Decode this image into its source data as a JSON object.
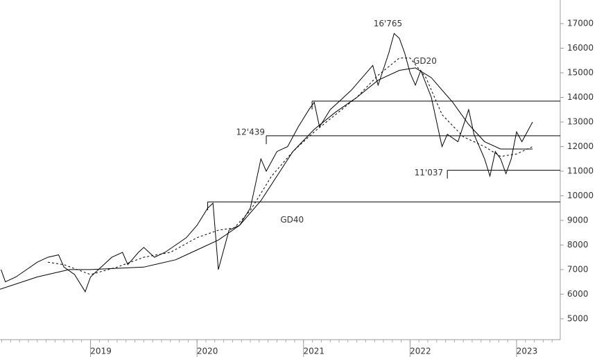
{
  "chart_data": {
    "type": "line",
    "xlim": [
      2018.15,
      2023.41
    ],
    "xticks": [
      2019,
      2020,
      2021,
      2022,
      2023
    ],
    "ylim": [
      4150,
      17960
    ],
    "yticks": [
      5000,
      6000,
      7000,
      8000,
      9000,
      10000,
      11000,
      12000,
      13000,
      14000,
      15000,
      16000,
      17000
    ],
    "series": [
      {
        "color": "#000000",
        "style": "solid",
        "x": [
          2018.16,
          2018.2,
          2018.3,
          2018.4,
          2018.5,
          2018.6,
          2018.7,
          2018.75,
          2018.85,
          2018.95,
          2019.0,
          2019.1,
          2019.2,
          2019.3,
          2019.35,
          2019.45,
          2019.5,
          2019.6,
          2019.7,
          2019.8,
          2019.9,
          2020.0,
          2020.1,
          2020.15,
          2020.2,
          2020.25,
          2020.3,
          2020.4,
          2020.5,
          2020.55,
          2020.6,
          2020.65,
          2020.75,
          2020.85,
          2020.95,
          2021.05,
          2021.1,
          2021.15,
          2021.25,
          2021.35,
          2021.45,
          2021.55,
          2021.65,
          2021.7,
          2021.8,
          2021.85,
          2021.9,
          2021.95,
          2022.0,
          2022.05,
          2022.1,
          2022.2,
          2022.3,
          2022.35,
          2022.45,
          2022.55,
          2022.6,
          2022.7,
          2022.75,
          2022.8,
          2022.85,
          2022.9,
          2022.95,
          2023.0,
          2023.05,
          2023.1,
          2023.15
        ],
        "values": [
          7000,
          6500,
          6700,
          7000,
          7300,
          7500,
          7600,
          7100,
          6800,
          6100,
          6700,
          7100,
          7500,
          7700,
          7200,
          7700,
          7900,
          7500,
          7700,
          8000,
          8300,
          8800,
          9500,
          9700,
          7000,
          7800,
          8600,
          8800,
          9500,
          10500,
          11500,
          11000,
          11800,
          12000,
          12800,
          13500,
          13800,
          12800,
          13500,
          13900,
          14300,
          14800,
          15300,
          14500,
          15800,
          16600,
          16400,
          15800,
          15000,
          14500,
          15100,
          14000,
          12000,
          12500,
          12200,
          13500,
          12500,
          11500,
          10800,
          11800,
          11500,
          10900,
          11500,
          12600,
          12200,
          12600,
          13000
        ]
      },
      {
        "name": "GD20",
        "color": "#000000",
        "style": "dashed",
        "x": [
          2018.6,
          2018.75,
          2019.0,
          2019.25,
          2019.5,
          2019.75,
          2020.0,
          2020.2,
          2020.35,
          2020.5,
          2020.7,
          2020.9,
          2021.1,
          2021.3,
          2021.5,
          2021.7,
          2021.9,
          2022.0,
          2022.15,
          2022.3,
          2022.5,
          2022.7,
          2022.85,
          2023.0,
          2023.15
        ],
        "values": [
          7300,
          7200,
          6800,
          7100,
          7500,
          7700,
          8300,
          8600,
          8700,
          9400,
          10800,
          11800,
          12600,
          13300,
          14000,
          14900,
          15600,
          15600,
          14800,
          13300,
          12400,
          12000,
          11600,
          11700,
          12000
        ]
      },
      {
        "name": "GD40",
        "color": "#000000",
        "style": "solid",
        "x": [
          2018.15,
          2018.5,
          2018.8,
          2019.0,
          2019.5,
          2019.8,
          2020.0,
          2020.2,
          2020.4,
          2020.6,
          2020.75,
          2020.9,
          2021.1,
          2021.3,
          2021.5,
          2021.7,
          2021.9,
          2022.05,
          2022.2,
          2022.4,
          2022.55,
          2022.7,
          2022.85,
          2023.0,
          2023.15
        ],
        "values": [
          6200,
          6700,
          7000,
          7000,
          7100,
          7400,
          7800,
          8200,
          8800,
          9800,
          10800,
          11800,
          12700,
          13400,
          14000,
          14700,
          15100,
          15200,
          14800,
          13800,
          12900,
          12200,
          11900,
          11900,
          11900
        ]
      }
    ],
    "levels": [
      {
        "value": 13850,
        "from": 2021.08
      },
      {
        "value": 12439,
        "from": 2020.65,
        "label": "12'439"
      },
      {
        "value": 11037,
        "from": 2022.35,
        "label": "11'037"
      },
      {
        "value": 9750,
        "from": 2020.1
      }
    ],
    "annotations": [
      {
        "label": "16'765",
        "value": 16765,
        "x": 2021.87
      }
    ]
  }
}
